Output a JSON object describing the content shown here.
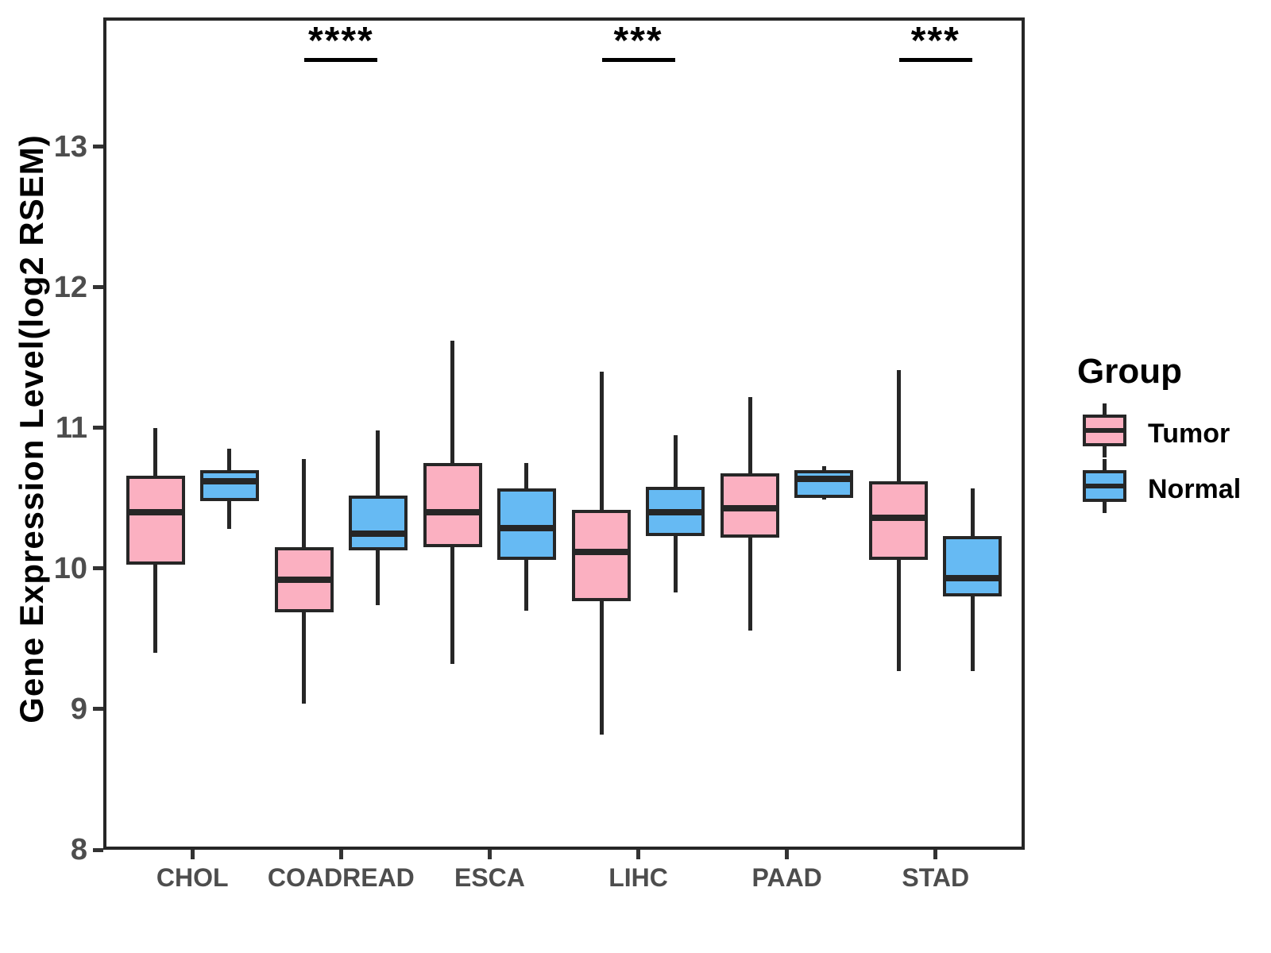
{
  "chart_data": {
    "type": "boxplot",
    "title": "",
    "xlabel": "",
    "ylabel": "Gene Expression Level(log2 RSEM)",
    "ylim": [
      8,
      13.92
    ],
    "yticks": [
      8,
      9,
      10,
      11,
      12,
      13
    ],
    "grid": false,
    "categories": [
      "CHOL",
      "COADREAD",
      "ESCA",
      "LIHC",
      "PAAD",
      "STAD"
    ],
    "legend": {
      "title": "Group",
      "position": "right"
    },
    "colors": {
      "tumor_fill": "#FBB0C1",
      "normal_fill": "#66BAF3",
      "box_border": "#262626",
      "axis_text": "#4d4d4d"
    },
    "series": [
      {
        "name": "Tumor",
        "color": "#FBB0C1",
        "boxes": [
          {
            "category": "CHOL",
            "whisker_low": 9.4,
            "q1": 10.03,
            "median": 10.4,
            "q3": 10.66,
            "whisker_high": 11.0
          },
          {
            "category": "COADREAD",
            "whisker_low": 9.04,
            "q1": 9.69,
            "median": 9.92,
            "q3": 10.15,
            "whisker_high": 10.78
          },
          {
            "category": "ESCA",
            "whisker_low": 9.32,
            "q1": 10.15,
            "median": 10.4,
            "q3": 10.75,
            "whisker_high": 11.62
          },
          {
            "category": "LIHC",
            "whisker_low": 8.82,
            "q1": 9.77,
            "median": 10.12,
            "q3": 10.42,
            "whisker_high": 11.4
          },
          {
            "category": "PAAD",
            "whisker_low": 9.56,
            "q1": 10.22,
            "median": 10.43,
            "q3": 10.68,
            "whisker_high": 11.22
          },
          {
            "category": "STAD",
            "whisker_low": 9.27,
            "q1": 10.06,
            "median": 10.36,
            "q3": 10.62,
            "whisker_high": 11.41
          }
        ]
      },
      {
        "name": "Normal",
        "color": "#66BAF3",
        "boxes": [
          {
            "category": "CHOL",
            "whisker_low": 10.28,
            "q1": 10.48,
            "median": 10.62,
            "q3": 10.7,
            "whisker_high": 10.85
          },
          {
            "category": "COADREAD",
            "whisker_low": 9.74,
            "q1": 10.13,
            "median": 10.25,
            "q3": 10.52,
            "whisker_high": 10.98
          },
          {
            "category": "ESCA",
            "whisker_low": 9.7,
            "q1": 10.06,
            "median": 10.29,
            "q3": 10.57,
            "whisker_high": 10.75
          },
          {
            "category": "LIHC",
            "whisker_low": 9.83,
            "q1": 10.23,
            "median": 10.4,
            "q3": 10.58,
            "whisker_high": 10.95
          },
          {
            "category": "PAAD",
            "whisker_low": 10.49,
            "q1": 10.5,
            "median": 10.64,
            "q3": 10.7,
            "whisker_high": 10.73
          },
          {
            "category": "STAD",
            "whisker_low": 9.27,
            "q1": 9.8,
            "median": 9.93,
            "q3": 10.23,
            "whisker_high": 10.57
          }
        ]
      }
    ],
    "annotations": [
      {
        "category": "COADREAD",
        "label": "****"
      },
      {
        "category": "LIHC",
        "label": "***"
      },
      {
        "category": "STAD",
        "label": "***"
      }
    ]
  }
}
